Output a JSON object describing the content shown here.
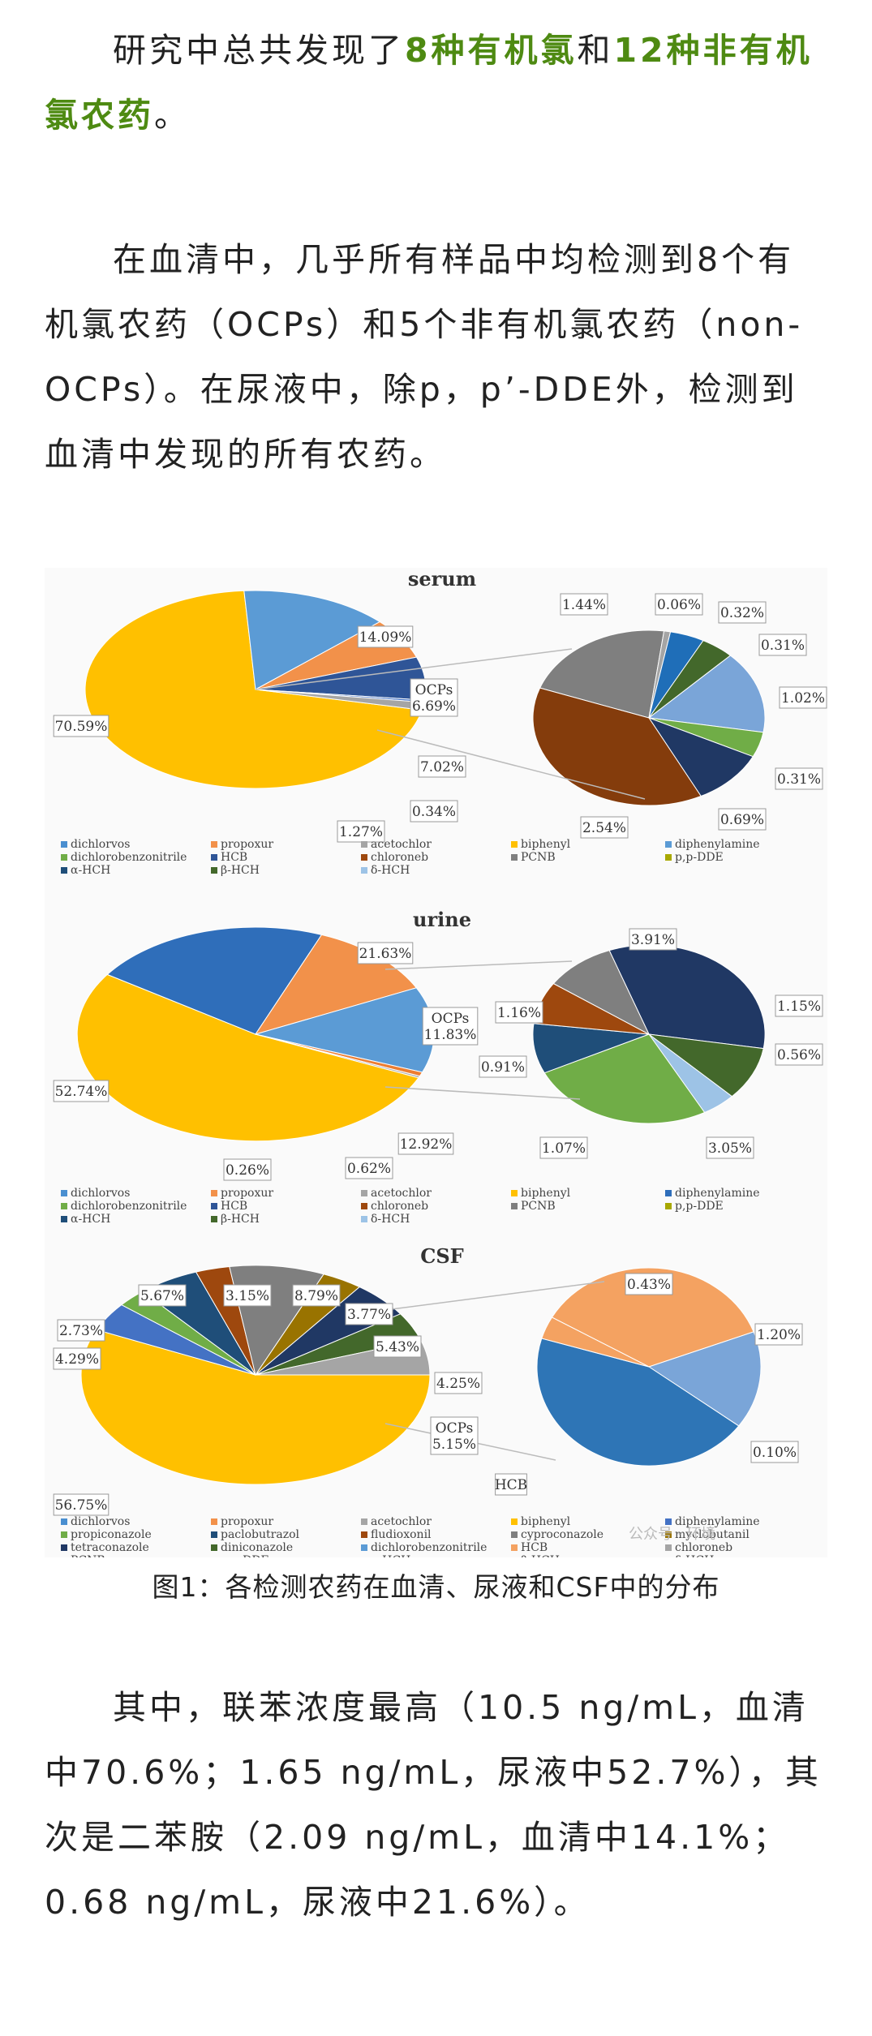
{
  "paragraph1": {
    "pre": "研究中总共发现了",
    "em1": "8种有机氯",
    "mid": "和",
    "em2": "12种非有机氯农药",
    "post": "。"
  },
  "paragraph2": "在血清中，几乎所有样品中均检测到8个有机氯农药（OCPs）和5个非有机氯农药（non-OCPs）。在尿液中，除p，p’-DDE外，检测到血清中发现的所有农药。",
  "paragraph3": "其中，联苯浓度最高（10.5 ng/mL，血清中70.6%；1.65 ng/mL，尿液中52.7%），其次是二苯胺（2.09 ng/mL，血清中14.1%；0.68 ng/mL，尿液中21.6%）。",
  "caption": "图1：各检测农药在血清、尿液和CSF中的分布",
  "watermark": "公众号 · 环境",
  "colors": {
    "accent_green": "#4e8a12",
    "biphenyl": "#FFC000",
    "diphenylamine": "#4A8FD0",
    "propoxur": "#F2914A",
    "hcb_dark": "#2F5597",
    "acetochlor": "#A5A5A5",
    "grey": "#7F7F7F",
    "brown": "#9E480E",
    "green": "#70AD47",
    "navy": "#203864",
    "dark_green": "#43682B",
    "light_blue": "#9DC3E6",
    "mid_blue": "#1F6EB8"
  },
  "chart_data": [
    {
      "type": "pie",
      "title": "serum",
      "main_slices": [
        {
          "label": "70.59%",
          "value": 70.59,
          "color": "#FFC000"
        },
        {
          "label": "14.09%",
          "value": 14.09,
          "color": "#5B9BD5"
        },
        {
          "label": "OCPs 6.69%",
          "value": 6.69,
          "color": "#F2914A"
        },
        {
          "label": "7.02%",
          "value": 7.02,
          "color": "#2F5597"
        },
        {
          "label": "0.34%",
          "value": 0.34,
          "color": "#4472C4"
        },
        {
          "label": "1.27%",
          "value": 1.27,
          "color": "#A5A5A5"
        }
      ],
      "sub_slices": [
        {
          "label": "1.44%",
          "value": 1.44,
          "color": "#7F7F7F"
        },
        {
          "label": "0.06%",
          "value": 0.06,
          "color": "#A5A5A5"
        },
        {
          "label": "0.32%",
          "value": 0.32,
          "color": "#1F6EB8"
        },
        {
          "label": "0.31%",
          "value": 0.31,
          "color": "#43682B"
        },
        {
          "label": "1.02%",
          "value": 1.02,
          "color": "#7AA5D8"
        },
        {
          "label": "0.31%",
          "value": 0.31,
          "color": "#70AD47"
        },
        {
          "label": "0.69%",
          "value": 0.69,
          "color": "#203864"
        },
        {
          "label": "2.54%",
          "value": 2.54,
          "color": "#843C0C"
        }
      ],
      "legend": [
        "dichlorvos",
        "propoxur",
        "acetochlor",
        "biphenyl",
        "diphenylamine",
        "dichlorobenzonitrile",
        "HCB",
        "chloroneb",
        "PCNB",
        "p,p-DDE",
        "α-HCH",
        "β-HCH",
        "δ-HCH"
      ],
      "legend_colors": [
        "#4A8FD0",
        "#F2914A",
        "#A5A5A5",
        "#FFC000",
        "#5B9BD5",
        "#70AD47",
        "#2F5597",
        "#9E480E",
        "#7F7F7F",
        "#A8A800",
        "#1F4E79",
        "#43682B",
        "#9DC3E6"
      ]
    },
    {
      "type": "pie",
      "title": "urine",
      "main_slices": [
        {
          "label": "52.74%",
          "value": 52.74,
          "color": "#FFC000"
        },
        {
          "label": "21.63%",
          "value": 21.63,
          "color": "#2F6EBA"
        },
        {
          "label": "OCPs 11.83%",
          "value": 11.83,
          "color": "#F2914A"
        },
        {
          "label": "12.92%",
          "value": 12.92,
          "color": "#5B9BD5"
        },
        {
          "label": "0.62%",
          "value": 0.62,
          "color": "#ED7D31"
        },
        {
          "label": "0.26%",
          "value": 0.26,
          "color": "#A5A5A5"
        }
      ],
      "sub_slices": [
        {
          "label": "3.91%",
          "value": 3.91,
          "color": "#203864"
        },
        {
          "label": "1.15%",
          "value": 1.15,
          "color": "#43682B"
        },
        {
          "label": "0.56%",
          "value": 0.56,
          "color": "#9DC3E6"
        },
        {
          "label": "3.05%",
          "value": 3.05,
          "color": "#70AD47"
        },
        {
          "label": "1.07%",
          "value": 1.07,
          "color": "#1F4E79"
        },
        {
          "label": "0.91%",
          "value": 0.91,
          "color": "#9E480E"
        },
        {
          "label": "1.16%",
          "value": 1.16,
          "color": "#7F7F7F"
        }
      ],
      "legend": [
        "dichlorvos",
        "propoxur",
        "acetochlor",
        "biphenyl",
        "diphenylamine",
        "dichlorobenzonitrile",
        "HCB",
        "chloroneb",
        "PCNB",
        "p,p-DDE",
        "α-HCH",
        "β-HCH",
        "δ-HCH"
      ],
      "legend_colors": [
        "#4A8FD0",
        "#F2914A",
        "#A5A5A5",
        "#FFC000",
        "#2F6EBA",
        "#70AD47",
        "#2F5597",
        "#9E480E",
        "#7F7F7F",
        "#A8A800",
        "#1F4E79",
        "#43682B",
        "#9DC3E6"
      ]
    },
    {
      "type": "pie",
      "title": "CSF",
      "main_slices": [
        {
          "label": "56.75%",
          "value": 56.75,
          "color": "#FFC000"
        },
        {
          "label": "4.29%",
          "value": 4.29,
          "color": "#4472C4"
        },
        {
          "label": "2.73%",
          "value": 2.73,
          "color": "#70AD47"
        },
        {
          "label": "5.67%",
          "value": 5.67,
          "color": "#1F4E79"
        },
        {
          "label": "3.15%",
          "value": 3.15,
          "color": "#9E480E"
        },
        {
          "label": "8.79%",
          "value": 8.79,
          "color": "#7F7F7F"
        },
        {
          "label": "3.77%",
          "value": 3.77,
          "color": "#997300"
        },
        {
          "label": "5.43%",
          "value": 5.43,
          "color": "#203864"
        },
        {
          "label": "4.25%",
          "value": 4.25,
          "color": "#43682B"
        },
        {
          "label": "OCPs 5.15%",
          "value": 5.15,
          "color": "#A5A5A5"
        }
      ],
      "sub_slices": [
        {
          "label": "HCB",
          "value": 0.97,
          "color": "#F4A261"
        },
        {
          "label": "0.43%",
          "value": 0.43,
          "color": "#7AA5D8"
        },
        {
          "label": "1.20%",
          "value": 1.2,
          "color": "#2E75B6"
        },
        {
          "label": "0.10%",
          "value": 0.1,
          "color": "#F4A261"
        }
      ],
      "legend": [
        "dichlorvos",
        "propoxur",
        "acetochlor",
        "biphenyl",
        "diphenylamine",
        "propiconazole",
        "paclobutrazol",
        "fludioxonil",
        "cyproconazole",
        "myclobutanil",
        "tetraconazole",
        "diniconazole",
        "dichlorobenzonitrile",
        "HCB",
        "chloroneb",
        "PCNB",
        "p,p-DDE",
        "α-HCH",
        "β-HCH",
        "δ-HCH"
      ],
      "legend_colors": [
        "#4A8FD0",
        "#F2914A",
        "#A5A5A5",
        "#FFC000",
        "#4472C4",
        "#70AD47",
        "#1F4E79",
        "#9E480E",
        "#7F7F7F",
        "#997300",
        "#203864",
        "#43682B",
        "#5B9BD5",
        "#F4A261",
        "#A5A5A5",
        "#FFC000",
        "#4472C4",
        "#70AD47",
        "#2E75B6",
        "#C55A11"
      ]
    }
  ]
}
